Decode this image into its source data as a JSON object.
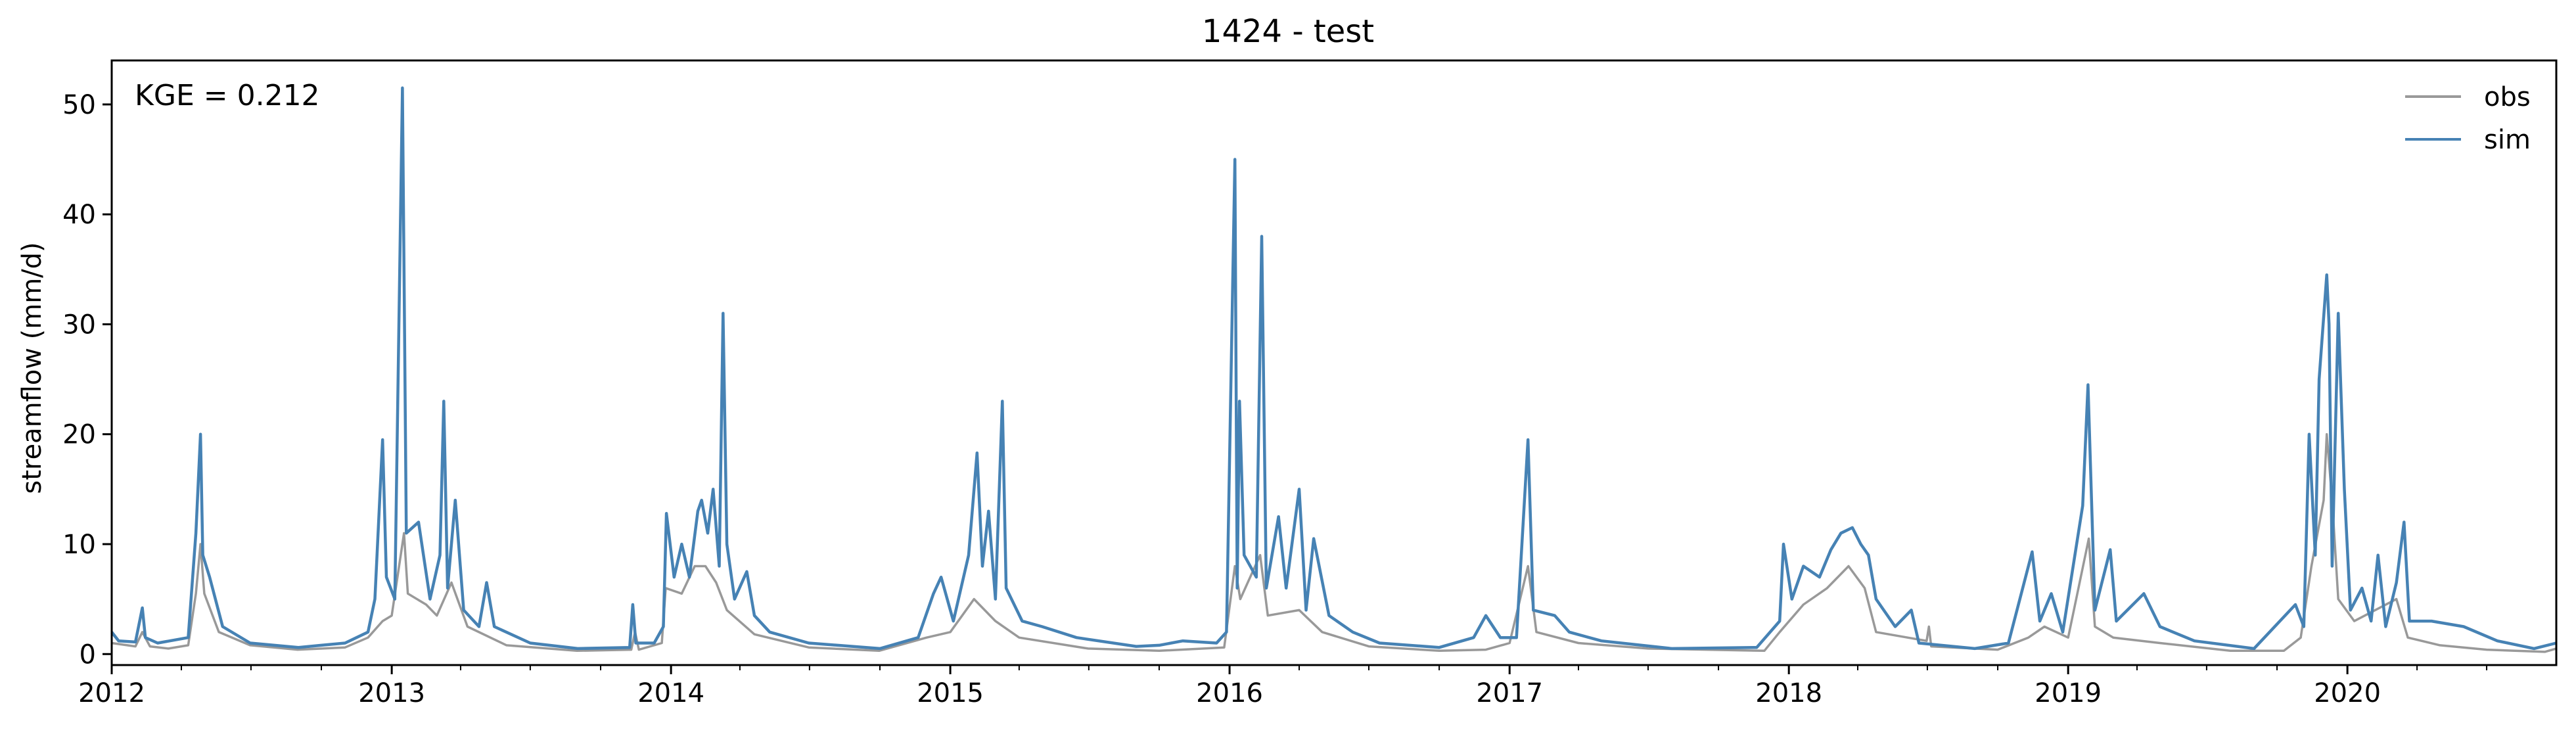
{
  "chart_data": {
    "type": "line",
    "title": "1424 - test",
    "xlabel": "",
    "ylabel": "streamflow (mm/d)",
    "x_axis": {
      "type": "date",
      "range": [
        "2012-01-01",
        "2020-09-30"
      ],
      "ticks": [
        "2012",
        "2013",
        "2014",
        "2015",
        "2016",
        "2017",
        "2018",
        "2019",
        "2020"
      ]
    },
    "ylim": [
      -1,
      54
    ],
    "y_ticks": [
      0,
      10,
      20,
      30,
      40,
      50
    ],
    "grid": false,
    "legend_position": "top-right",
    "annotation": "KGE = 0.212",
    "series": [
      {
        "name": "obs",
        "color": "#999999",
        "points": [
          [
            "2012-01-01",
            1.0
          ],
          [
            "2012-02-01",
            0.7
          ],
          [
            "2012-02-10",
            2.0
          ],
          [
            "2012-02-20",
            0.7
          ],
          [
            "2012-03-15",
            0.5
          ],
          [
            "2012-04-10",
            0.8
          ],
          [
            "2012-04-20",
            5.5
          ],
          [
            "2012-04-26",
            10.0
          ],
          [
            "2012-05-01",
            5.5
          ],
          [
            "2012-05-20",
            2.0
          ],
          [
            "2012-06-30",
            0.8
          ],
          [
            "2012-08-31",
            0.4
          ],
          [
            "2012-11-01",
            0.6
          ],
          [
            "2012-12-01",
            1.5
          ],
          [
            "2012-12-20",
            3.0
          ],
          [
            "2013-01-01",
            3.5
          ],
          [
            "2013-01-17",
            11.0
          ],
          [
            "2013-01-22",
            5.5
          ],
          [
            "2013-02-15",
            4.5
          ],
          [
            "2013-03-01",
            3.5
          ],
          [
            "2013-03-20",
            6.5
          ],
          [
            "2013-04-10",
            2.5
          ],
          [
            "2013-05-31",
            0.8
          ],
          [
            "2013-08-31",
            0.3
          ],
          [
            "2013-11-10",
            0.4
          ],
          [
            "2013-11-15",
            2.0
          ],
          [
            "2013-11-20",
            0.4
          ],
          [
            "2013-12-20",
            1.0
          ],
          [
            "2013-12-25",
            6.0
          ],
          [
            "2014-01-15",
            5.5
          ],
          [
            "2014-02-01",
            8.0
          ],
          [
            "2014-02-15",
            8.0
          ],
          [
            "2014-03-01",
            6.5
          ],
          [
            "2014-03-15",
            4.0
          ],
          [
            "2014-04-20",
            1.8
          ],
          [
            "2014-06-30",
            0.6
          ],
          [
            "2014-09-30",
            0.3
          ],
          [
            "2014-12-01",
            1.5
          ],
          [
            "2015-01-01",
            2.0
          ],
          [
            "2015-02-01",
            5.0
          ],
          [
            "2015-03-01",
            3.0
          ],
          [
            "2015-04-01",
            1.5
          ],
          [
            "2015-06-30",
            0.5
          ],
          [
            "2015-10-01",
            0.3
          ],
          [
            "2015-12-25",
            0.6
          ],
          [
            "2016-01-08",
            8.0
          ],
          [
            "2016-01-15",
            5.0
          ],
          [
            "2016-02-10",
            9.0
          ],
          [
            "2016-02-20",
            3.5
          ],
          [
            "2016-04-01",
            4.0
          ],
          [
            "2016-05-01",
            2.0
          ],
          [
            "2016-07-01",
            0.7
          ],
          [
            "2016-10-01",
            0.3
          ],
          [
            "2016-12-01",
            0.4
          ],
          [
            "2017-01-01",
            1.0
          ],
          [
            "2017-01-25",
            8.0
          ],
          [
            "2017-02-05",
            2.0
          ],
          [
            "2017-04-01",
            1.0
          ],
          [
            "2017-07-01",
            0.5
          ],
          [
            "2017-11-30",
            0.3
          ],
          [
            "2017-12-20",
            2.0
          ],
          [
            "2018-01-20",
            4.5
          ],
          [
            "2018-02-20",
            6.0
          ],
          [
            "2018-03-20",
            8.0
          ],
          [
            "2018-04-10",
            6.0
          ],
          [
            "2018-04-25",
            2.0
          ],
          [
            "2018-06-30",
            1.2
          ],
          [
            "2018-07-03",
            2.5
          ],
          [
            "2018-07-06",
            0.7
          ],
          [
            "2018-10-01",
            0.4
          ],
          [
            "2018-11-10",
            1.5
          ],
          [
            "2018-12-01",
            2.5
          ],
          [
            "2019-01-01",
            1.5
          ],
          [
            "2019-01-28",
            10.5
          ],
          [
            "2019-02-05",
            2.5
          ],
          [
            "2019-03-01",
            1.5
          ],
          [
            "2019-05-01",
            1.0
          ],
          [
            "2019-08-01",
            0.3
          ],
          [
            "2019-10-10",
            0.3
          ],
          [
            "2019-11-01",
            1.5
          ],
          [
            "2019-11-15",
            8.0
          ],
          [
            "2019-12-01",
            14.0
          ],
          [
            "2019-12-05",
            20.0
          ],
          [
            "2019-12-12",
            14.0
          ],
          [
            "2019-12-20",
            5.0
          ],
          [
            "2020-01-10",
            3.0
          ],
          [
            "2020-03-05",
            5.0
          ],
          [
            "2020-03-20",
            1.5
          ],
          [
            "2020-05-01",
            0.8
          ],
          [
            "2020-07-01",
            0.4
          ],
          [
            "2020-09-15",
            0.2
          ],
          [
            "2020-09-30",
            0.5
          ]
        ]
      },
      {
        "name": "sim",
        "color": "#4682b4",
        "points": [
          [
            "2012-01-01",
            2.0
          ],
          [
            "2012-01-10",
            1.2
          ],
          [
            "2012-02-01",
            1.1
          ],
          [
            "2012-02-10",
            4.2
          ],
          [
            "2012-02-14",
            1.5
          ],
          [
            "2012-03-01",
            1.0
          ],
          [
            "2012-04-10",
            1.5
          ],
          [
            "2012-04-20",
            11.0
          ],
          [
            "2012-04-26",
            20.0
          ],
          [
            "2012-04-29",
            9.0
          ],
          [
            "2012-05-08",
            7.0
          ],
          [
            "2012-05-25",
            2.5
          ],
          [
            "2012-06-30",
            1.0
          ],
          [
            "2012-09-01",
            0.6
          ],
          [
            "2012-10-01",
            0.8
          ],
          [
            "2012-11-01",
            1.0
          ],
          [
            "2012-12-01",
            2.0
          ],
          [
            "2012-12-10",
            5.0
          ],
          [
            "2012-12-20",
            19.5
          ],
          [
            "2012-12-25",
            7.0
          ],
          [
            "2013-01-05",
            5.0
          ],
          [
            "2013-01-15",
            51.5
          ],
          [
            "2013-01-20",
            11.0
          ],
          [
            "2013-02-05",
            12.0
          ],
          [
            "2013-02-20",
            5.0
          ],
          [
            "2013-03-05",
            9.0
          ],
          [
            "2013-03-10",
            23.0
          ],
          [
            "2013-03-15",
            6.0
          ],
          [
            "2013-03-25",
            14.0
          ],
          [
            "2013-04-05",
            4.0
          ],
          [
            "2013-04-25",
            2.5
          ],
          [
            "2013-05-05",
            6.5
          ],
          [
            "2013-05-15",
            2.5
          ],
          [
            "2013-07-01",
            1.0
          ],
          [
            "2013-09-01",
            0.5
          ],
          [
            "2013-11-08",
            0.6
          ],
          [
            "2013-11-12",
            4.5
          ],
          [
            "2013-11-16",
            1.0
          ],
          [
            "2013-12-10",
            1.0
          ],
          [
            "2013-12-22",
            2.5
          ],
          [
            "2013-12-26",
            12.8
          ],
          [
            "2014-01-05",
            7.0
          ],
          [
            "2014-01-15",
            10.0
          ],
          [
            "2014-01-25",
            7.0
          ],
          [
            "2014-02-05",
            13.0
          ],
          [
            "2014-02-10",
            14.0
          ],
          [
            "2014-02-18",
            11.0
          ],
          [
            "2014-02-25",
            15.0
          ],
          [
            "2014-03-05",
            8.0
          ],
          [
            "2014-03-10",
            31.0
          ],
          [
            "2014-03-15",
            10.0
          ],
          [
            "2014-03-25",
            5.0
          ],
          [
            "2014-04-10",
            7.5
          ],
          [
            "2014-04-20",
            3.5
          ],
          [
            "2014-05-10",
            2.0
          ],
          [
            "2014-06-30",
            1.0
          ],
          [
            "2014-10-01",
            0.5
          ],
          [
            "2014-11-20",
            1.5
          ],
          [
            "2014-12-10",
            5.5
          ],
          [
            "2014-12-20",
            7.0
          ],
          [
            "2015-01-05",
            3.0
          ],
          [
            "2015-01-25",
            9.0
          ],
          [
            "2015-02-05",
            18.3
          ],
          [
            "2015-02-12",
            8.0
          ],
          [
            "2015-02-20",
            13.0
          ],
          [
            "2015-03-01",
            5.0
          ],
          [
            "2015-03-10",
            23.0
          ],
          [
            "2015-03-15",
            6.0
          ],
          [
            "2015-04-05",
            3.0
          ],
          [
            "2015-05-01",
            2.5
          ],
          [
            "2015-06-15",
            1.5
          ],
          [
            "2015-09-01",
            0.7
          ],
          [
            "2015-10-01",
            0.8
          ],
          [
            "2015-11-01",
            1.2
          ],
          [
            "2015-12-15",
            1.0
          ],
          [
            "2015-12-28",
            2.0
          ],
          [
            "2016-01-08",
            45.0
          ],
          [
            "2016-01-11",
            6.0
          ],
          [
            "2016-01-14",
            23.0
          ],
          [
            "2016-01-20",
            9.0
          ],
          [
            "2016-02-05",
            7.0
          ],
          [
            "2016-02-12",
            38.0
          ],
          [
            "2016-02-18",
            6.0
          ],
          [
            "2016-03-05",
            12.5
          ],
          [
            "2016-03-15",
            6.0
          ],
          [
            "2016-04-01",
            15.0
          ],
          [
            "2016-04-10",
            4.0
          ],
          [
            "2016-04-20",
            10.5
          ],
          [
            "2016-05-10",
            3.5
          ],
          [
            "2016-06-10",
            2.0
          ],
          [
            "2016-07-15",
            1.0
          ],
          [
            "2016-10-01",
            0.6
          ],
          [
            "2016-11-15",
            1.5
          ],
          [
            "2016-12-01",
            3.5
          ],
          [
            "2016-12-20",
            1.5
          ],
          [
            "2017-01-10",
            1.5
          ],
          [
            "2017-01-25",
            19.5
          ],
          [
            "2017-02-01",
            4.0
          ],
          [
            "2017-03-01",
            3.5
          ],
          [
            "2017-03-20",
            2.0
          ],
          [
            "2017-05-01",
            1.2
          ],
          [
            "2017-08-01",
            0.5
          ],
          [
            "2017-11-20",
            0.6
          ],
          [
            "2017-12-20",
            3.0
          ],
          [
            "2017-12-25",
            10.0
          ],
          [
            "2018-01-05",
            5.0
          ],
          [
            "2018-01-20",
            8.0
          ],
          [
            "2018-02-10",
            7.0
          ],
          [
            "2018-02-25",
            9.5
          ],
          [
            "2018-03-10",
            11.0
          ],
          [
            "2018-03-25",
            11.5
          ],
          [
            "2018-04-05",
            10.0
          ],
          [
            "2018-04-15",
            9.0
          ],
          [
            "2018-04-25",
            5.0
          ],
          [
            "2018-05-20",
            2.5
          ],
          [
            "2018-06-10",
            4.0
          ],
          [
            "2018-06-20",
            1.0
          ],
          [
            "2018-09-01",
            0.5
          ],
          [
            "2018-10-15",
            1.0
          ],
          [
            "2018-11-15",
            9.3
          ],
          [
            "2018-11-25",
            3.0
          ],
          [
            "2018-12-10",
            5.5
          ],
          [
            "2018-12-25",
            2.0
          ],
          [
            "2019-01-20",
            13.5
          ],
          [
            "2019-01-27",
            24.5
          ],
          [
            "2019-02-05",
            4.0
          ],
          [
            "2019-02-25",
            9.5
          ],
          [
            "2019-03-05",
            3.0
          ],
          [
            "2019-04-10",
            5.5
          ],
          [
            "2019-05-01",
            2.5
          ],
          [
            "2019-06-15",
            1.2
          ],
          [
            "2019-09-01",
            0.5
          ],
          [
            "2019-10-25",
            4.5
          ],
          [
            "2019-11-05",
            2.5
          ],
          [
            "2019-11-12",
            20.0
          ],
          [
            "2019-11-20",
            9.0
          ],
          [
            "2019-11-25",
            25.0
          ],
          [
            "2019-12-05",
            34.5
          ],
          [
            "2019-12-08",
            30.0
          ],
          [
            "2019-12-12",
            8.0
          ],
          [
            "2019-12-20",
            31.0
          ],
          [
            "2019-12-28",
            15.0
          ],
          [
            "2020-01-05",
            4.0
          ],
          [
            "2020-01-20",
            6.0
          ],
          [
            "2020-02-01",
            3.0
          ],
          [
            "2020-02-10",
            9.0
          ],
          [
            "2020-02-20",
            2.5
          ],
          [
            "2020-03-05",
            6.5
          ],
          [
            "2020-03-15",
            12.0
          ],
          [
            "2020-03-22",
            3.0
          ],
          [
            "2020-04-20",
            3.0
          ],
          [
            "2020-06-01",
            2.5
          ],
          [
            "2020-07-15",
            1.2
          ],
          [
            "2020-09-01",
            0.5
          ],
          [
            "2020-09-30",
            1.0
          ]
        ]
      }
    ]
  }
}
